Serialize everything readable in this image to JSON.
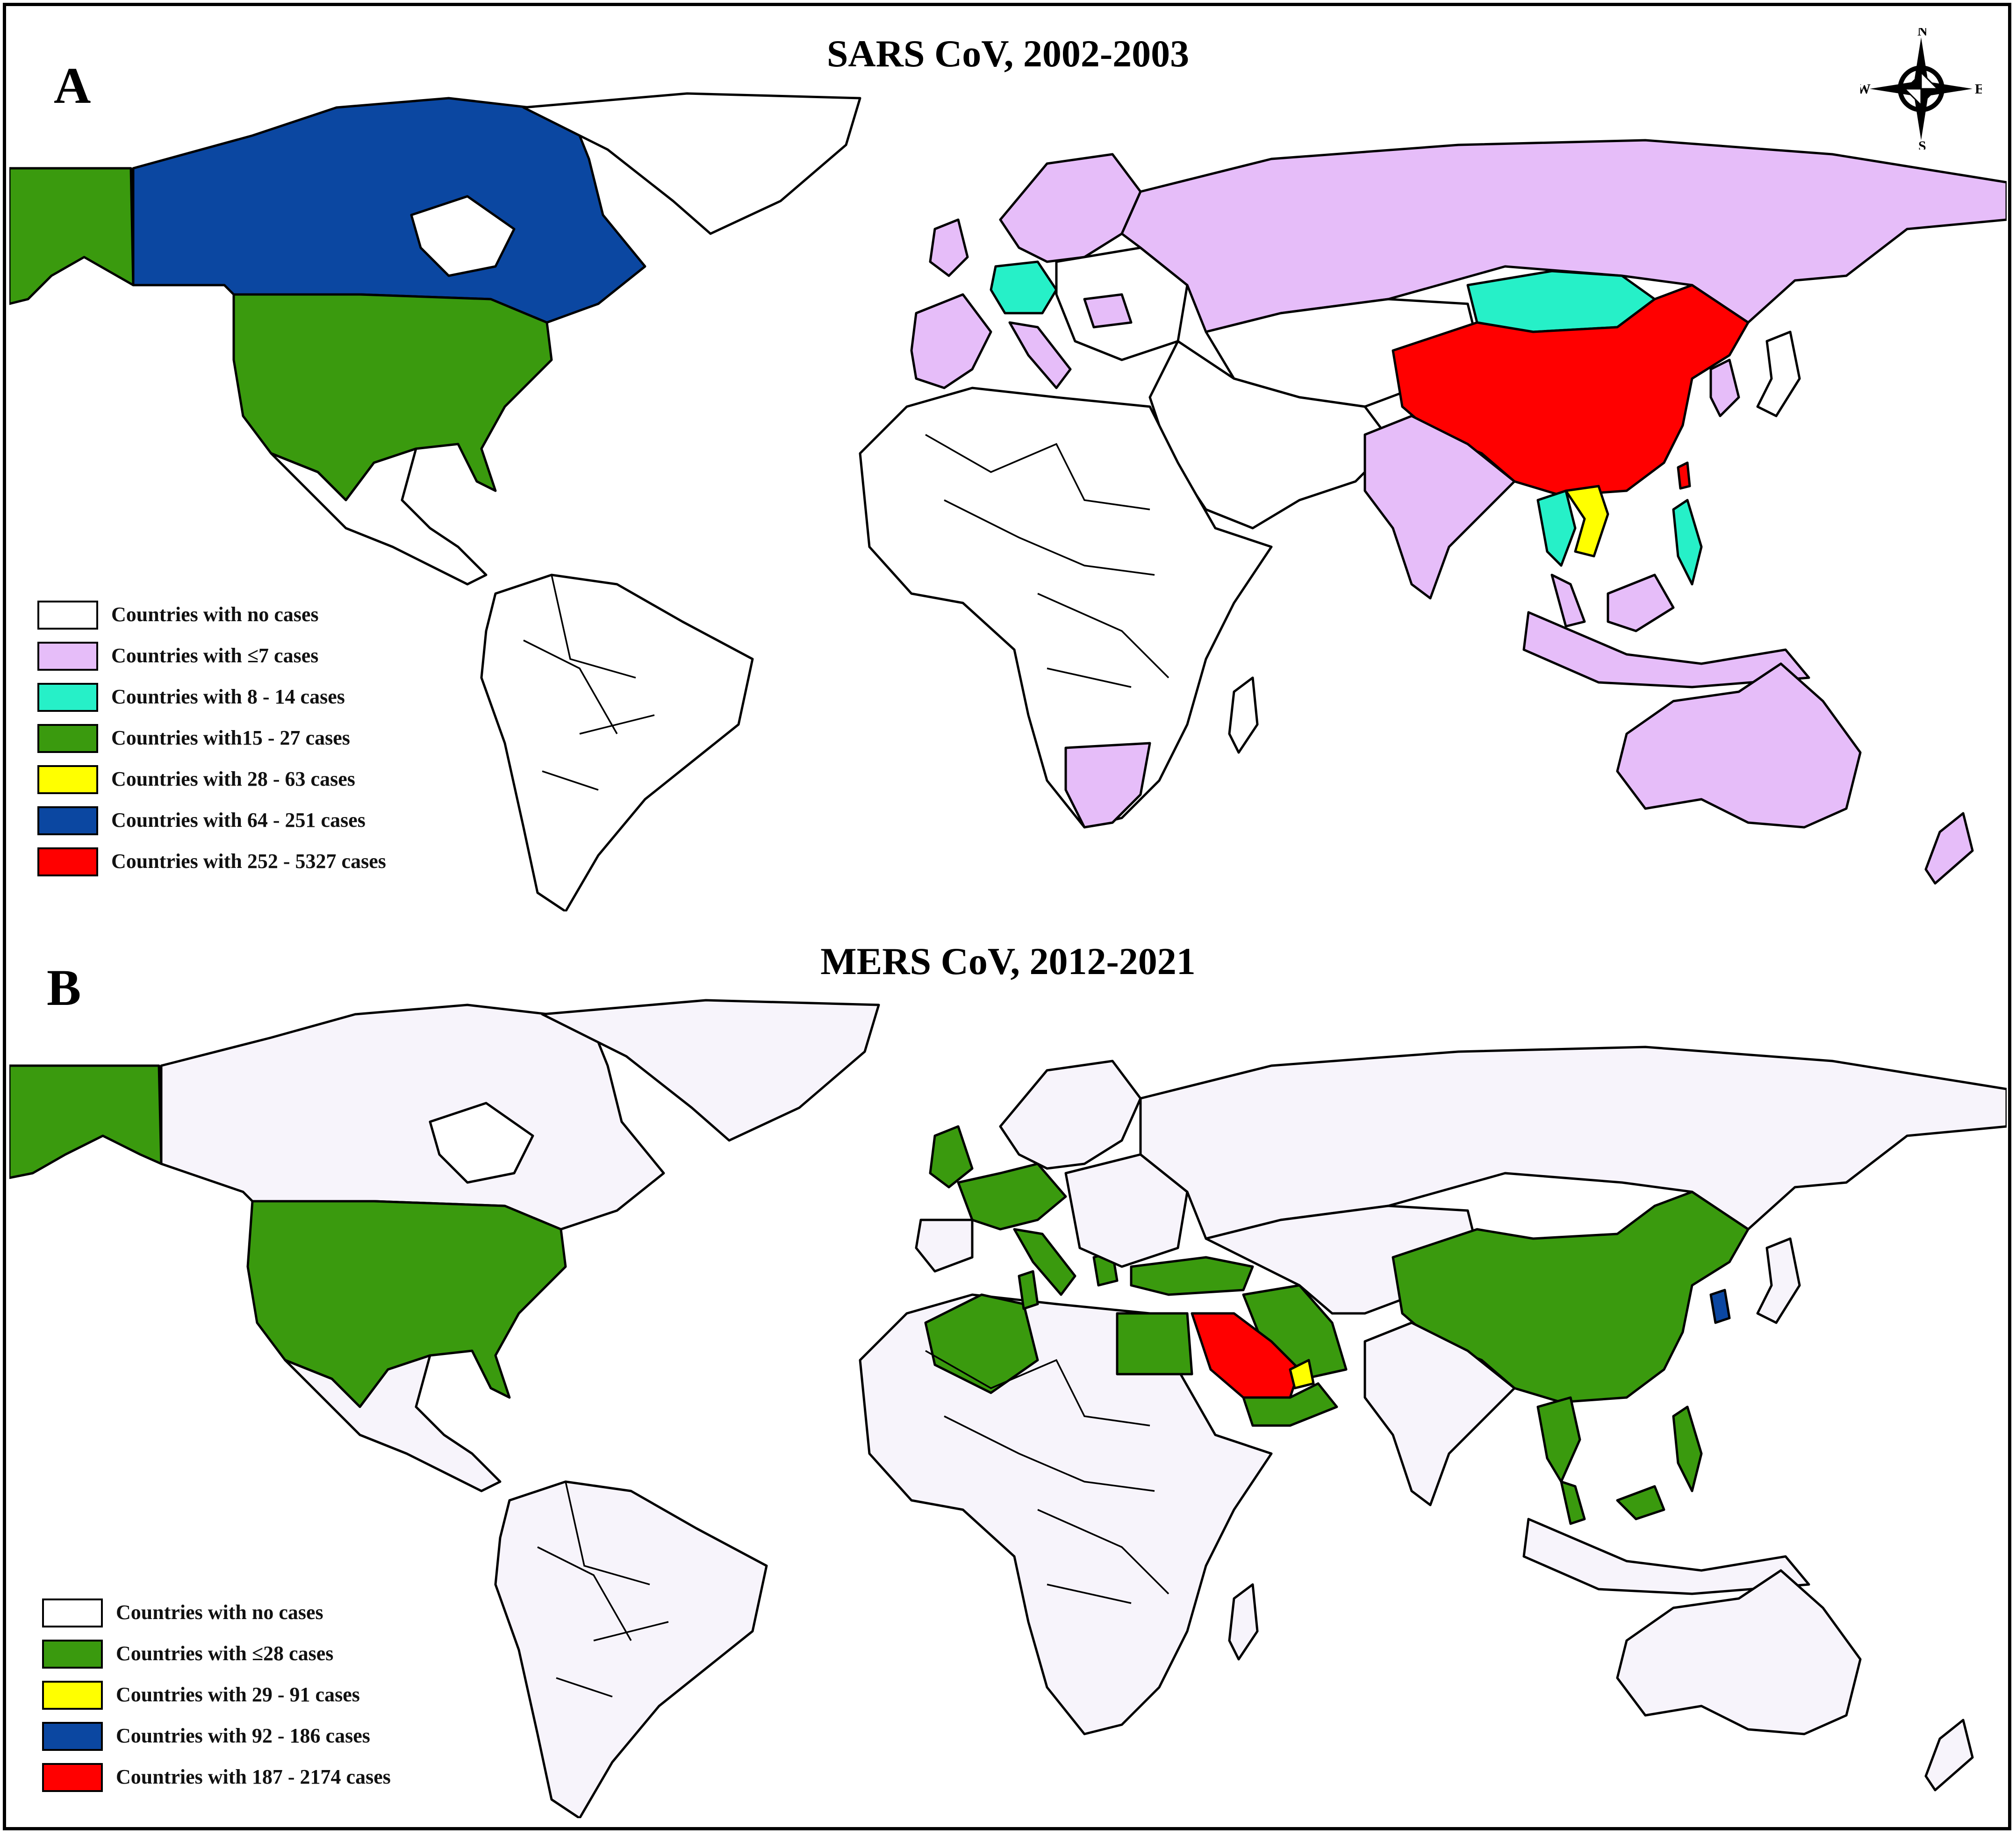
{
  "panel_a": {
    "letter": "A",
    "title": "SARS CoV, 2002-2003",
    "colors": {
      "none": "#ffffff",
      "level1": "#e6bdf9",
      "level2": "#26f0c8",
      "level3": "#3a9a0e",
      "level4": "#ffff00",
      "level5": "#0b47a1",
      "level6": "#ff0000"
    },
    "legend": [
      {
        "label": "Countries with no cases",
        "color": "#ffffff"
      },
      {
        "label": "Countries with ≤7 cases",
        "color": "#e6bdf9"
      },
      {
        "label": "Countries with 8 - 14 cases",
        "color": "#26f0c8"
      },
      {
        "label": "Countries with15 - 27 cases",
        "color": "#3a9a0e"
      },
      {
        "label": "Countries with 28 - 63 cases",
        "color": "#ffff00"
      },
      {
        "label": "Countries with 64 - 251 cases",
        "color": "#0b47a1"
      },
      {
        "label": "Countries with 252 - 5327 cases",
        "color": "#ff0000"
      }
    ]
  },
  "panel_b": {
    "letter": "B",
    "title": "MERS CoV, 2012-2021",
    "colors": {
      "none": "#f7f4fb",
      "level1": "#3a9a0e",
      "level2": "#ffff00",
      "level3": "#0b47a1",
      "level4": "#ff0000"
    },
    "legend": [
      {
        "label": "Countries with no cases",
        "color": "#ffffff"
      },
      {
        "label": "Countries with ≤28 cases",
        "color": "#3a9a0e"
      },
      {
        "label": "Countries with 29 - 91 cases",
        "color": "#ffff00"
      },
      {
        "label": "Countries with 92 - 186 cases",
        "color": "#0b47a1"
      },
      {
        "label": "Countries with 187 - 2174 cases",
        "color": "#ff0000"
      }
    ]
  },
  "compass": {
    "n": "N",
    "s": "S",
    "e": "E",
    "w": "W"
  }
}
